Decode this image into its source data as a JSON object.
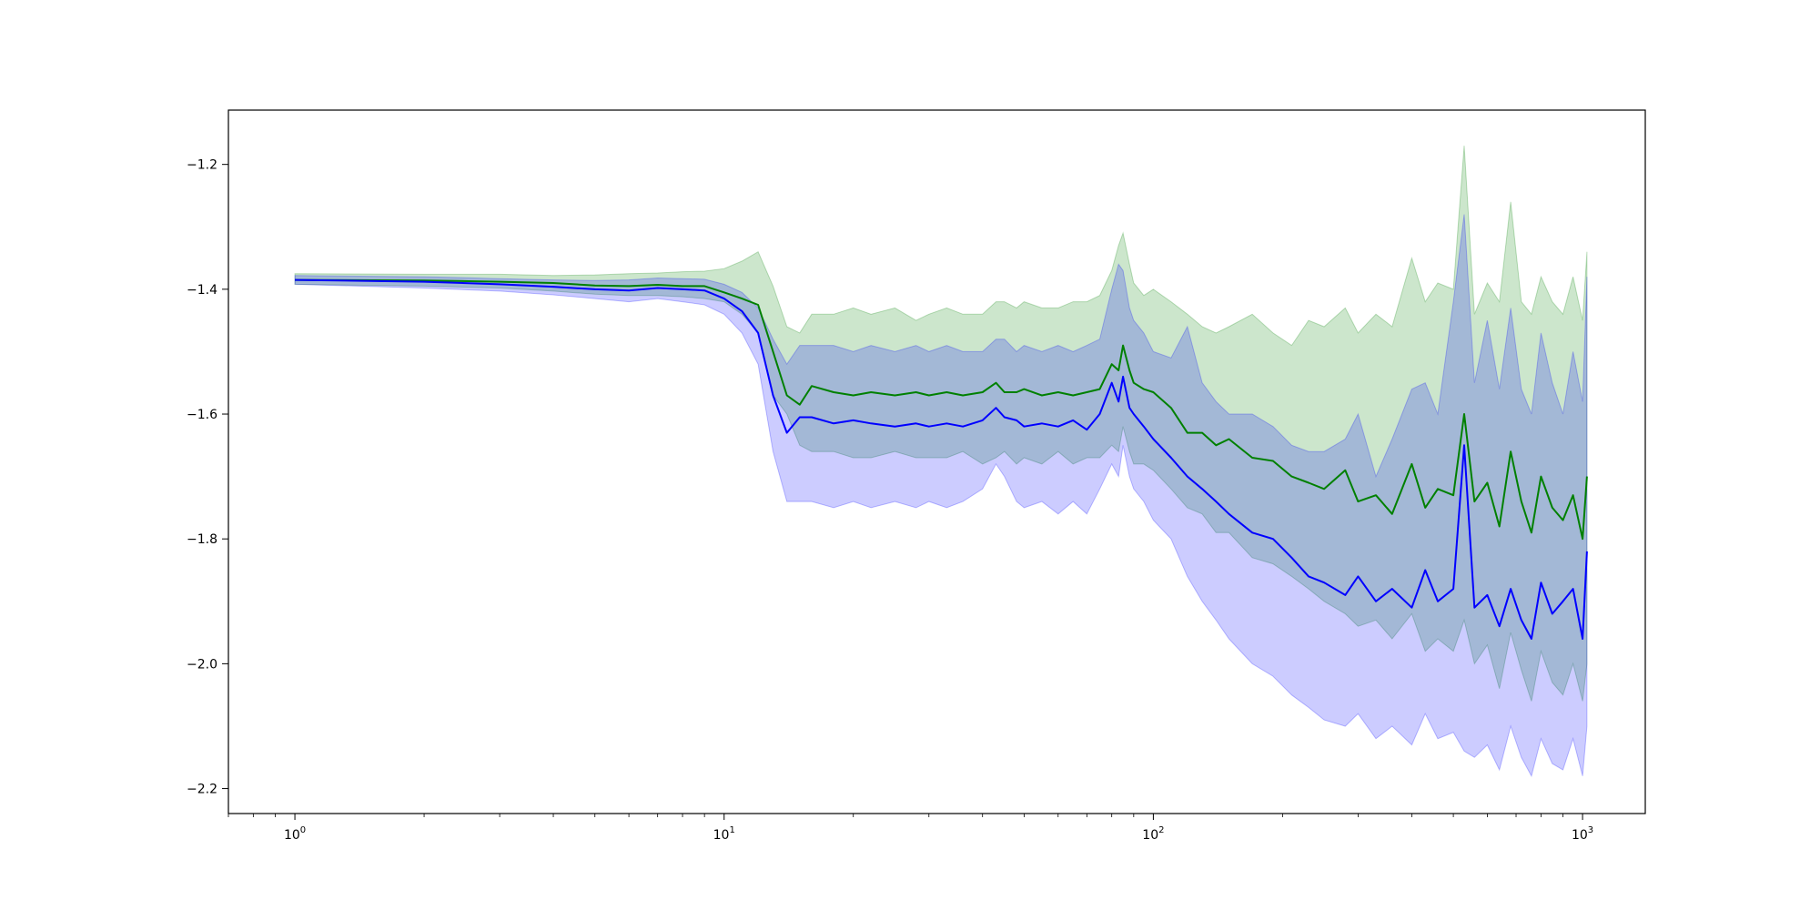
{
  "chart_data": {
    "type": "line",
    "title": "",
    "xlabel": "",
    "ylabel": "",
    "xscale": "log",
    "xlim": [
      0.7,
      1400
    ],
    "ylim": [
      -2.24,
      -1.113
    ],
    "grid": false,
    "legend": "none",
    "x_ticks": [
      {
        "value": 1,
        "base": "10",
        "exp": "0"
      },
      {
        "value": 10,
        "base": "10",
        "exp": "1"
      },
      {
        "value": 100,
        "base": "10",
        "exp": "2"
      },
      {
        "value": 1000,
        "base": "10",
        "exp": "3"
      }
    ],
    "y_ticks": [
      {
        "value": -1.2,
        "label": "−1.2"
      },
      {
        "value": -1.4,
        "label": "−1.4"
      },
      {
        "value": -1.6,
        "label": "−1.6"
      },
      {
        "value": -1.8,
        "label": "−1.8"
      },
      {
        "value": -2.0,
        "label": "−2.0"
      },
      {
        "value": -2.2,
        "label": "−2.2"
      }
    ],
    "series": [
      {
        "color": "#008000",
        "band_color": "#008000",
        "band_opacity": 0.2,
        "x": [
          1,
          2,
          3,
          4,
          5,
          6,
          7,
          8,
          9,
          10,
          11,
          12,
          13,
          14,
          15,
          16,
          18,
          20,
          22,
          25,
          28,
          30,
          33,
          36,
          40,
          43,
          45,
          48,
          50,
          55,
          60,
          65,
          70,
          75,
          80,
          83,
          85,
          88,
          90,
          95,
          100,
          110,
          120,
          130,
          140,
          150,
          170,
          190,
          210,
          230,
          250,
          280,
          300,
          330,
          360,
          400,
          430,
          460,
          500,
          530,
          560,
          600,
          640,
          680,
          720,
          760,
          800,
          850,
          900,
          950,
          1000,
          1024
        ],
        "mean": [
          -1.385,
          -1.386,
          -1.388,
          -1.39,
          -1.394,
          -1.395,
          -1.393,
          -1.395,
          -1.395,
          -1.405,
          -1.415,
          -1.425,
          -1.5,
          -1.57,
          -1.585,
          -1.555,
          -1.565,
          -1.57,
          -1.565,
          -1.57,
          -1.565,
          -1.57,
          -1.565,
          -1.57,
          -1.565,
          -1.55,
          -1.565,
          -1.565,
          -1.56,
          -1.57,
          -1.565,
          -1.57,
          -1.565,
          -1.56,
          -1.52,
          -1.53,
          -1.49,
          -1.53,
          -1.55,
          -1.56,
          -1.565,
          -1.59,
          -1.63,
          -1.63,
          -1.65,
          -1.64,
          -1.67,
          -1.675,
          -1.7,
          -1.71,
          -1.72,
          -1.69,
          -1.74,
          -1.73,
          -1.76,
          -1.68,
          -1.75,
          -1.72,
          -1.73,
          -1.6,
          -1.74,
          -1.71,
          -1.78,
          -1.66,
          -1.74,
          -1.79,
          -1.7,
          -1.75,
          -1.77,
          -1.73,
          -1.8,
          -1.7
        ],
        "upper": [
          -1.375,
          -1.376,
          -1.376,
          -1.378,
          -1.377,
          -1.375,
          -1.374,
          -1.372,
          -1.371,
          -1.367,
          -1.355,
          -1.34,
          -1.395,
          -1.46,
          -1.47,
          -1.44,
          -1.44,
          -1.43,
          -1.44,
          -1.43,
          -1.45,
          -1.44,
          -1.43,
          -1.44,
          -1.44,
          -1.42,
          -1.42,
          -1.43,
          -1.42,
          -1.43,
          -1.43,
          -1.42,
          -1.42,
          -1.41,
          -1.37,
          -1.33,
          -1.31,
          -1.36,
          -1.39,
          -1.41,
          -1.4,
          -1.42,
          -1.44,
          -1.46,
          -1.47,
          -1.46,
          -1.44,
          -1.47,
          -1.49,
          -1.45,
          -1.46,
          -1.43,
          -1.47,
          -1.44,
          -1.46,
          -1.35,
          -1.42,
          -1.39,
          -1.4,
          -1.17,
          -1.44,
          -1.39,
          -1.42,
          -1.26,
          -1.42,
          -1.44,
          -1.38,
          -1.42,
          -1.44,
          -1.38,
          -1.45,
          -1.34
        ],
        "lower": [
          -1.392,
          -1.395,
          -1.398,
          -1.403,
          -1.408,
          -1.41,
          -1.41,
          -1.412,
          -1.415,
          -1.42,
          -1.44,
          -1.47,
          -1.57,
          -1.6,
          -1.65,
          -1.66,
          -1.66,
          -1.67,
          -1.67,
          -1.66,
          -1.67,
          -1.67,
          -1.67,
          -1.66,
          -1.68,
          -1.67,
          -1.66,
          -1.68,
          -1.67,
          -1.68,
          -1.66,
          -1.68,
          -1.67,
          -1.67,
          -1.65,
          -1.66,
          -1.62,
          -1.66,
          -1.68,
          -1.68,
          -1.69,
          -1.72,
          -1.75,
          -1.76,
          -1.79,
          -1.79,
          -1.83,
          -1.84,
          -1.86,
          -1.88,
          -1.9,
          -1.92,
          -1.94,
          -1.93,
          -1.96,
          -1.92,
          -1.98,
          -1.96,
          -1.98,
          -1.93,
          -2.0,
          -1.97,
          -2.04,
          -1.95,
          -2.01,
          -2.06,
          -1.98,
          -2.03,
          -2.05,
          -2.0,
          -2.06,
          -2.0
        ]
      },
      {
        "color": "#0000ff",
        "band_color": "#0000ff",
        "band_opacity": 0.2,
        "x": [
          1,
          2,
          3,
          4,
          5,
          6,
          7,
          8,
          9,
          10,
          11,
          12,
          13,
          14,
          15,
          16,
          18,
          20,
          22,
          25,
          28,
          30,
          33,
          36,
          40,
          43,
          45,
          48,
          50,
          55,
          60,
          65,
          70,
          75,
          80,
          83,
          85,
          88,
          90,
          95,
          100,
          110,
          120,
          130,
          140,
          150,
          170,
          190,
          210,
          230,
          250,
          280,
          300,
          330,
          360,
          400,
          430,
          460,
          500,
          530,
          560,
          600,
          640,
          680,
          720,
          760,
          800,
          850,
          900,
          950,
          1000,
          1024
        ],
        "mean": [
          -1.385,
          -1.388,
          -1.392,
          -1.396,
          -1.4,
          -1.402,
          -1.398,
          -1.4,
          -1.402,
          -1.415,
          -1.435,
          -1.47,
          -1.57,
          -1.63,
          -1.605,
          -1.605,
          -1.615,
          -1.61,
          -1.615,
          -1.62,
          -1.615,
          -1.62,
          -1.615,
          -1.62,
          -1.61,
          -1.59,
          -1.605,
          -1.61,
          -1.62,
          -1.615,
          -1.62,
          -1.61,
          -1.625,
          -1.6,
          -1.55,
          -1.58,
          -1.54,
          -1.59,
          -1.6,
          -1.62,
          -1.64,
          -1.67,
          -1.7,
          -1.72,
          -1.74,
          -1.76,
          -1.79,
          -1.8,
          -1.83,
          -1.86,
          -1.87,
          -1.89,
          -1.86,
          -1.9,
          -1.88,
          -1.91,
          -1.85,
          -1.9,
          -1.88,
          -1.65,
          -1.91,
          -1.89,
          -1.94,
          -1.88,
          -1.93,
          -1.96,
          -1.87,
          -1.92,
          -1.9,
          -1.88,
          -1.96,
          -1.82
        ],
        "upper": [
          -1.378,
          -1.38,
          -1.383,
          -1.385,
          -1.386,
          -1.385,
          -1.382,
          -1.383,
          -1.384,
          -1.392,
          -1.405,
          -1.43,
          -1.48,
          -1.52,
          -1.49,
          -1.49,
          -1.49,
          -1.5,
          -1.49,
          -1.5,
          -1.49,
          -1.5,
          -1.49,
          -1.5,
          -1.5,
          -1.48,
          -1.48,
          -1.5,
          -1.49,
          -1.5,
          -1.49,
          -1.5,
          -1.49,
          -1.48,
          -1.4,
          -1.36,
          -1.37,
          -1.43,
          -1.45,
          -1.47,
          -1.5,
          -1.51,
          -1.46,
          -1.55,
          -1.58,
          -1.6,
          -1.6,
          -1.62,
          -1.65,
          -1.66,
          -1.66,
          -1.64,
          -1.6,
          -1.7,
          -1.64,
          -1.56,
          -1.55,
          -1.6,
          -1.42,
          -1.28,
          -1.55,
          -1.45,
          -1.56,
          -1.43,
          -1.56,
          -1.6,
          -1.47,
          -1.55,
          -1.6,
          -1.5,
          -1.58,
          -1.38
        ],
        "lower": [
          -1.392,
          -1.398,
          -1.403,
          -1.409,
          -1.415,
          -1.42,
          -1.415,
          -1.42,
          -1.425,
          -1.44,
          -1.47,
          -1.52,
          -1.66,
          -1.74,
          -1.74,
          -1.74,
          -1.75,
          -1.74,
          -1.75,
          -1.74,
          -1.75,
          -1.74,
          -1.75,
          -1.74,
          -1.72,
          -1.68,
          -1.7,
          -1.74,
          -1.75,
          -1.74,
          -1.76,
          -1.74,
          -1.76,
          -1.72,
          -1.68,
          -1.7,
          -1.65,
          -1.7,
          -1.72,
          -1.74,
          -1.77,
          -1.8,
          -1.86,
          -1.9,
          -1.93,
          -1.96,
          -2.0,
          -2.02,
          -2.05,
          -2.07,
          -2.09,
          -2.1,
          -2.08,
          -2.12,
          -2.1,
          -2.13,
          -2.08,
          -2.12,
          -2.11,
          -2.14,
          -2.15,
          -2.13,
          -2.17,
          -2.1,
          -2.15,
          -2.18,
          -2.12,
          -2.16,
          -2.17,
          -2.12,
          -2.18,
          -2.1
        ]
      }
    ]
  }
}
